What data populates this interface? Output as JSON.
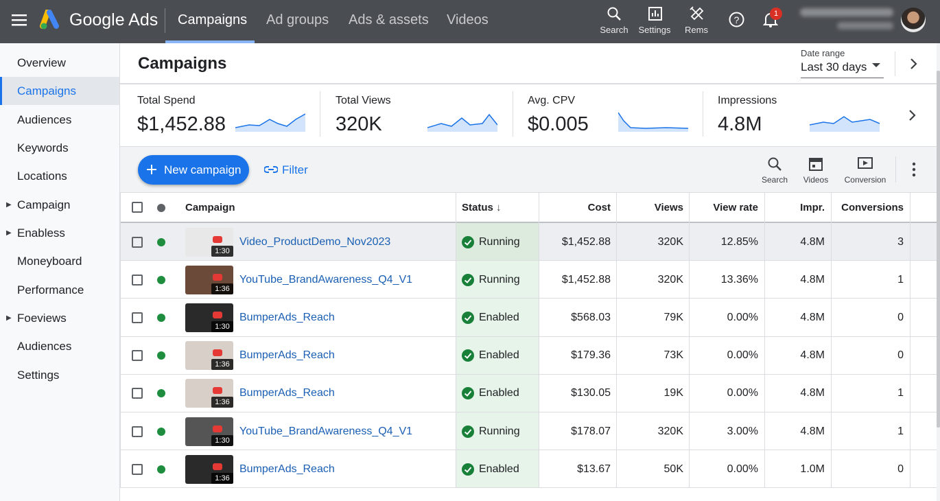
{
  "header": {
    "brand": "Google Ads",
    "tabs": [
      "Campaigns",
      "Ad groups",
      "Ads & assets",
      "Videos"
    ],
    "tools": [
      "Search",
      "Settings",
      "Rems"
    ],
    "notification_count": "1"
  },
  "sidebar": {
    "items": [
      "Overview",
      "Campaigns",
      "Audiences",
      "Keywords",
      "Locations",
      "Campaign",
      "Enabless",
      "Moneyboard",
      "Performance",
      "Foeviews",
      "Audiences",
      "Settings"
    ]
  },
  "page": {
    "title": "Campaigns",
    "date_range_label": "Date range",
    "date_range": "Last 30 days"
  },
  "metrics": [
    {
      "label": "Total Spend",
      "value": "$1,452.88"
    },
    {
      "label": "Total Views",
      "value": "320K"
    },
    {
      "label": "Avg. CPV",
      "value": "$0.005"
    },
    {
      "label": "Impressions",
      "value": "4.8M"
    }
  ],
  "toolbar": {
    "new_campaign": "New campaign",
    "filter": "Filter",
    "actions": [
      "Search",
      "Videos",
      "Conversion"
    ]
  },
  "table": {
    "columns": [
      "Campaign",
      "Status",
      "Cost",
      "Views",
      "View rate",
      "Impr.",
      "Conversions"
    ],
    "rows": [
      {
        "duration": "1:30",
        "campaign": "Video_ProductDemo_Nov2023",
        "status": "Running",
        "cost": "$1,452.88",
        "views": "320K",
        "view_rate": "12.85%",
        "impr": "4.8M",
        "conversions": "3"
      },
      {
        "duration": "1:36",
        "campaign": "YouTube_BrandAwareness_Q4_V1",
        "status": "Running",
        "cost": "$1,452.88",
        "views": "320K",
        "view_rate": "13.36%",
        "impr": "4.8M",
        "conversions": "1"
      },
      {
        "duration": "1:30",
        "campaign": "BumperAds_Reach",
        "status": "Enabled",
        "cost": "$568.03",
        "views": "79K",
        "view_rate": "0.00%",
        "impr": "4.8M",
        "conversions": "0"
      },
      {
        "duration": "1:36",
        "campaign": "BumperAds_Reach",
        "status": "Enabled",
        "cost": "$179.36",
        "views": "73K",
        "view_rate": "0.00%",
        "impr": "4.8M",
        "conversions": "0"
      },
      {
        "duration": "1:36",
        "campaign": "BumperAds_Reach",
        "status": "Enabled",
        "cost": "$130.05",
        "views": "19K",
        "view_rate": "0.00%",
        "impr": "4.8M",
        "conversions": "1"
      },
      {
        "duration": "1:30",
        "campaign": "YouTube_BrandAwareness_Q4_V1",
        "status": "Running",
        "cost": "$178.07",
        "views": "320K",
        "view_rate": "3.00%",
        "impr": "4.8M",
        "conversions": "1"
      },
      {
        "duration": "1:36",
        "campaign": "BumperAds_Reach",
        "status": "Enabled",
        "cost": "$13.67",
        "views": "50K",
        "view_rate": "0.00%",
        "impr": "1.0M",
        "conversions": "0"
      }
    ]
  }
}
